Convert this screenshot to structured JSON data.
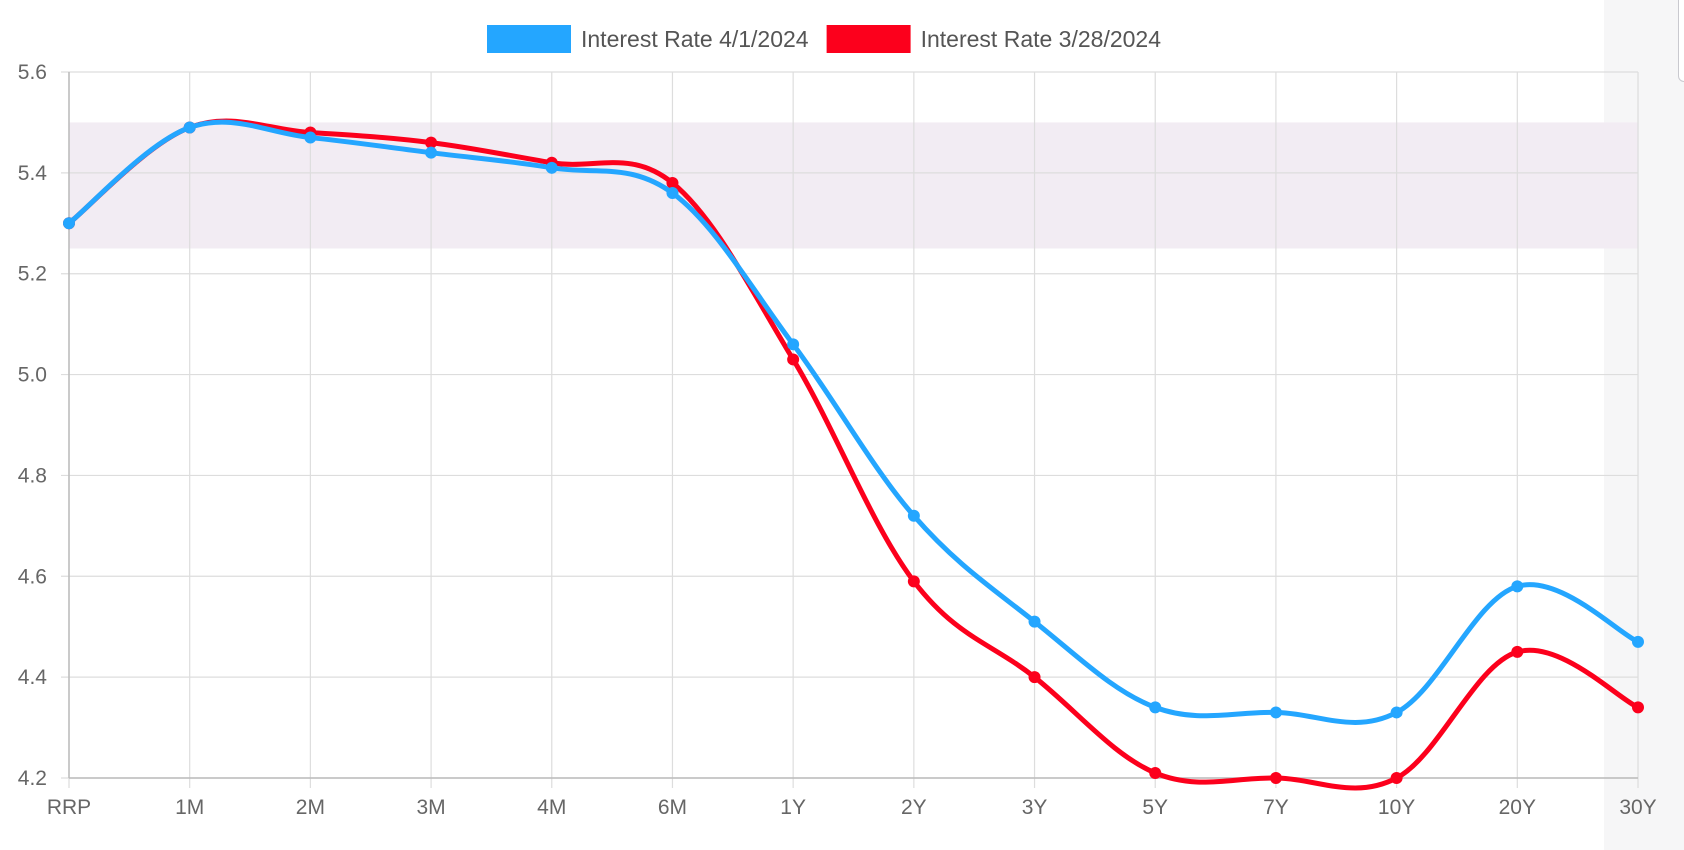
{
  "chart_data": {
    "type": "line",
    "categories": [
      "RRP",
      "1M",
      "2M",
      "3M",
      "4M",
      "6M",
      "1Y",
      "2Y",
      "3Y",
      "5Y",
      "7Y",
      "10Y",
      "20Y",
      "30Y"
    ],
    "series": [
      {
        "name": "Interest Rate 4/1/2024",
        "color": "#24a6ff",
        "values": [
          5.3,
          5.49,
          5.47,
          5.44,
          5.41,
          5.36,
          5.06,
          4.72,
          4.51,
          4.34,
          4.33,
          4.33,
          4.58,
          4.47
        ]
      },
      {
        "name": "Interest Rate 3/28/2024",
        "color": "#fc001c",
        "values": [
          5.3,
          5.49,
          5.48,
          5.46,
          5.42,
          5.38,
          5.03,
          4.59,
          4.4,
          4.21,
          4.2,
          4.2,
          4.45,
          4.34
        ]
      }
    ],
    "ylim": [
      4.2,
      5.6
    ],
    "yticks": [
      "4.2",
      "4.4",
      "4.6",
      "4.8",
      "5.0",
      "5.2",
      "5.4",
      "5.6"
    ],
    "band": {
      "from": 5.25,
      "to": 5.5,
      "color": "#f2ecf3"
    },
    "grid": true,
    "legend_position": "top-center",
    "title": "",
    "xlabel": "",
    "ylabel": ""
  }
}
